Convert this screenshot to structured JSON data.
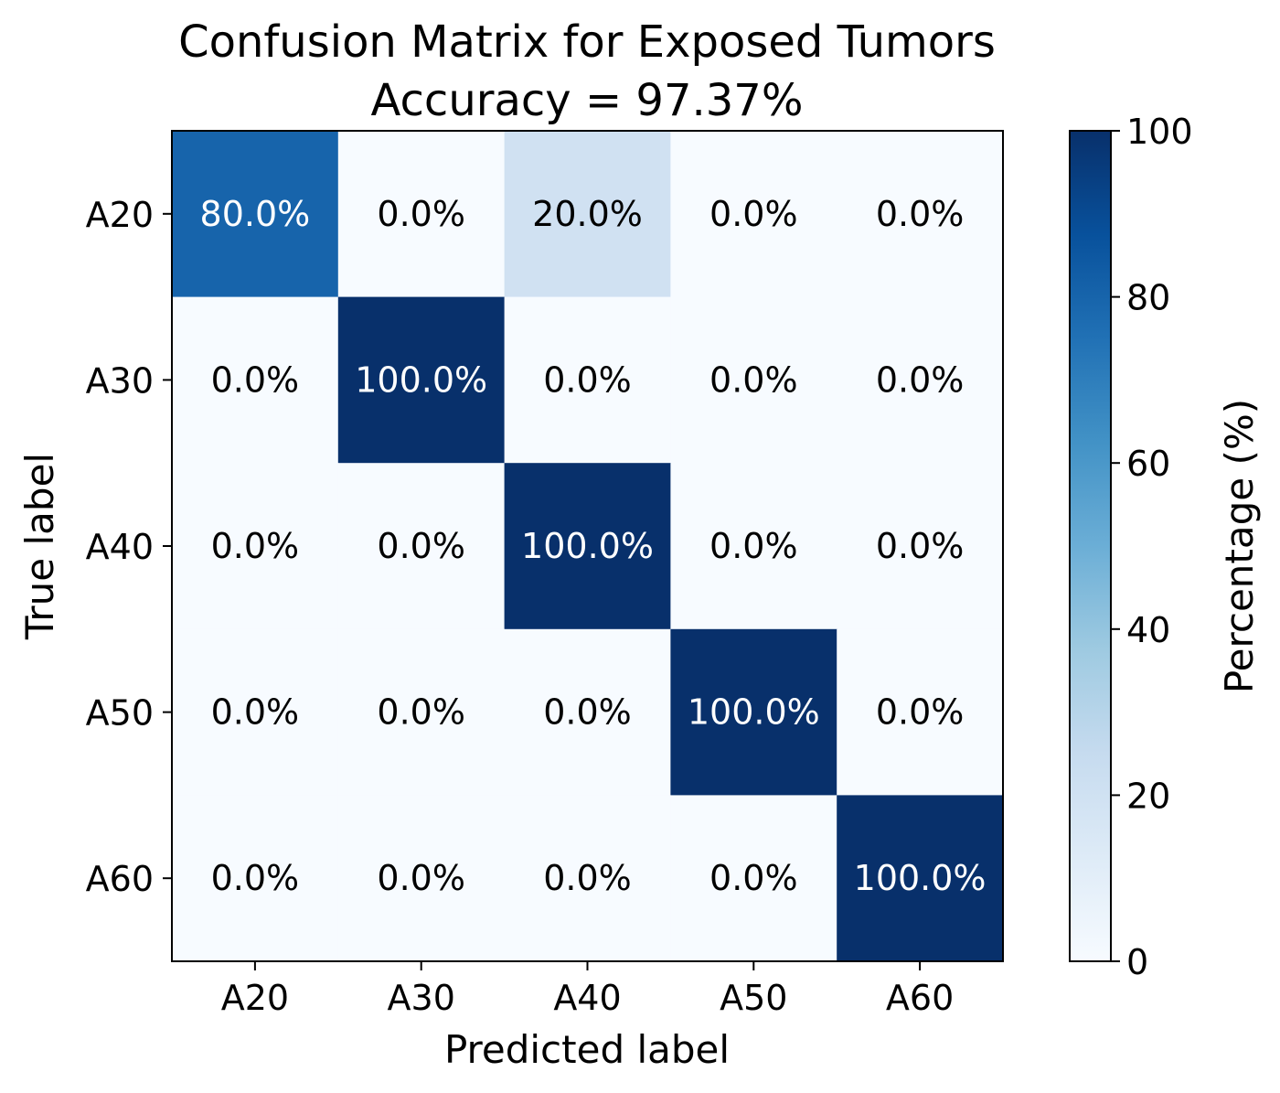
{
  "chart_data": {
    "type": "heatmap",
    "title": "Confusion Matrix for Exposed Tumors",
    "subtitle": "Accuracy = 97.37%",
    "xlabel": "Predicted label",
    "ylabel": "True label",
    "x_categories": [
      "A20",
      "A30",
      "A40",
      "A50",
      "A60"
    ],
    "y_categories": [
      "A20",
      "A30",
      "A40",
      "A50",
      "A60"
    ],
    "values": [
      [
        80.0,
        0.0,
        20.0,
        0.0,
        0.0
      ],
      [
        0.0,
        100.0,
        0.0,
        0.0,
        0.0
      ],
      [
        0.0,
        0.0,
        100.0,
        0.0,
        0.0
      ],
      [
        0.0,
        0.0,
        0.0,
        100.0,
        0.0
      ],
      [
        0.0,
        0.0,
        0.0,
        0.0,
        100.0
      ]
    ],
    "cell_labels": [
      [
        "80.0%",
        "0.0%",
        "20.0%",
        "0.0%",
        "0.0%"
      ],
      [
        "0.0%",
        "100.0%",
        "0.0%",
        "0.0%",
        "0.0%"
      ],
      [
        "0.0%",
        "0.0%",
        "100.0%",
        "0.0%",
        "0.0%"
      ],
      [
        "0.0%",
        "0.0%",
        "0.0%",
        "100.0%",
        "0.0%"
      ],
      [
        "0.0%",
        "0.0%",
        "0.0%",
        "0.0%",
        "100.0%"
      ]
    ],
    "colorbar": {
      "label": "Percentage (%)",
      "range": [
        0,
        100
      ],
      "ticks": [
        "0",
        "20",
        "40",
        "60",
        "80",
        "100"
      ],
      "colormap": "Blues",
      "color_low": "#f7fbff",
      "color_high": "#08306b"
    },
    "grid": false
  }
}
